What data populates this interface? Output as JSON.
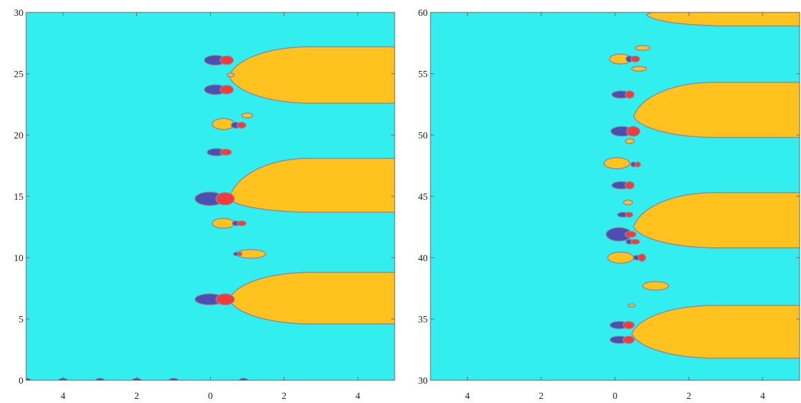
{
  "colors": {
    "background_region": "#33EEEE",
    "band_region": "#FFC21E",
    "boundary": "#8C8C9A",
    "blue_blob": "#4B4FAF",
    "red_blob": "#F03C3C",
    "frame": "#666666"
  },
  "chart_data": [
    {
      "type": "contour_region_plot",
      "title": "",
      "xlabel": "",
      "ylabel": "",
      "xlim": [
        -5,
        5
      ],
      "ylim": [
        0,
        30
      ],
      "x_ticks": [
        -4,
        -2,
        0,
        2,
        4
      ],
      "x_tick_labels": [
        "4",
        "2",
        "0",
        "2",
        "4"
      ],
      "y_ticks": [
        0,
        5,
        10,
        15,
        20,
        25,
        30
      ],
      "y_tick_labels": [
        "0",
        "5",
        "10",
        "15",
        "20",
        "25",
        "30"
      ],
      "grid": false,
      "legend": "none",
      "bands": [
        {
          "y_low_at_left": 4.6,
          "y_high_at_left": 8.8,
          "x_start": 0.5,
          "y_tip": 6.6
        },
        {
          "y_low_at_left": 13.7,
          "y_high_at_left": 18.1,
          "x_start": 0.5,
          "y_tip": 14.8
        },
        {
          "y_low_at_left": 22.6,
          "y_high_at_left": 27.2,
          "x_start": 0.5,
          "y_tip": 24.8
        }
      ],
      "yellow_islands": [
        {
          "x": 0.35,
          "y": 20.9,
          "rx": 0.3,
          "ry": 0.45
        },
        {
          "x": 0.35,
          "y": 12.8,
          "rx": 0.3,
          "ry": 0.4
        },
        {
          "x": 1.1,
          "y": 10.3,
          "rx": 0.4,
          "ry": 0.35
        },
        {
          "x": 1.0,
          "y": 21.6,
          "rx": 0.15,
          "ry": 0.2
        },
        {
          "x": 0.55,
          "y": 24.9,
          "rx": 0.1,
          "ry": 0.15
        }
      ],
      "pole_pairs": [
        {
          "x": 0.2,
          "y": 6.6,
          "blue_rx": 0.4,
          "blue_ry": 0.45,
          "red_rx": 0.25,
          "red_ry": 0.45
        },
        {
          "x": 0.2,
          "y": 14.8,
          "blue_rx": 0.4,
          "blue_ry": 0.55,
          "red_rx": 0.25,
          "red_ry": 0.5
        },
        {
          "x": 0.3,
          "y": 18.6,
          "blue_rx": 0.25,
          "blue_ry": 0.3,
          "red_rx": 0.15,
          "red_ry": 0.25
        },
        {
          "x": 0.3,
          "y": 23.7,
          "blue_rx": 0.3,
          "blue_ry": 0.4,
          "red_rx": 0.18,
          "red_ry": 0.35
        },
        {
          "x": 0.3,
          "y": 26.1,
          "blue_rx": 0.3,
          "blue_ry": 0.4,
          "red_rx": 0.18,
          "red_ry": 0.35
        },
        {
          "x": 0.75,
          "y": 20.8,
          "blue_rx": 0.12,
          "blue_ry": 0.25,
          "red_rx": 0.12,
          "red_ry": 0.25
        },
        {
          "x": 0.75,
          "y": 12.8,
          "blue_rx": 0.1,
          "blue_ry": 0.2,
          "red_rx": 0.12,
          "red_ry": 0.2
        },
        {
          "x": 0.75,
          "y": 10.3,
          "blue_rx": 0.08,
          "blue_ry": 0.15,
          "red_rx": 0.06,
          "red_ry": 0.15
        }
      ],
      "axis_dots": [
        -5,
        -4,
        -3,
        -2,
        -1,
        0.9
      ]
    },
    {
      "type": "contour_region_plot",
      "title": "",
      "xlabel": "",
      "ylabel": "",
      "xlim": [
        -5,
        5
      ],
      "ylim": [
        30,
        60
      ],
      "x_ticks": [
        -4,
        -2,
        0,
        2,
        4
      ],
      "x_tick_labels": [
        "4",
        "2",
        "0",
        "2",
        "4"
      ],
      "y_ticks": [
        30,
        35,
        40,
        45,
        50,
        55,
        60
      ],
      "y_tick_labels": [
        "30",
        "35",
        "40",
        "45",
        "50",
        "55",
        "60"
      ],
      "grid": false,
      "legend": "none",
      "bands": [
        {
          "y_low_at_left": 31.8,
          "y_high_at_left": 36.1,
          "x_start": 0.45,
          "y_tip": 33.8
        },
        {
          "y_low_at_left": 40.8,
          "y_high_at_left": 45.3,
          "x_start": 0.5,
          "y_tip": 42.5
        },
        {
          "y_low_at_left": 49.8,
          "y_high_at_left": 54.3,
          "x_start": 0.5,
          "y_tip": 51.5
        },
        {
          "y_low_at_left": 58.9,
          "y_high_at_left": 60.5,
          "x_start": 0.85,
          "y_tip": 59.8
        }
      ],
      "yellow_islands": [
        {
          "x": 0.15,
          "y": 40.0,
          "rx": 0.35,
          "ry": 0.45
        },
        {
          "x": 0.05,
          "y": 47.7,
          "rx": 0.35,
          "ry": 0.45
        },
        {
          "x": 1.1,
          "y": 37.7,
          "rx": 0.35,
          "ry": 0.35
        },
        {
          "x": 0.35,
          "y": 44.5,
          "rx": 0.12,
          "ry": 0.2
        },
        {
          "x": 0.15,
          "y": 56.2,
          "rx": 0.3,
          "ry": 0.4
        },
        {
          "x": 0.75,
          "y": 57.1,
          "rx": 0.2,
          "ry": 0.2
        },
        {
          "x": 0.65,
          "y": 55.4,
          "rx": 0.2,
          "ry": 0.2
        },
        {
          "x": 0.4,
          "y": 49.5,
          "rx": 0.12,
          "ry": 0.2
        },
        {
          "x": 0.45,
          "y": 36.1,
          "rx": 0.1,
          "ry": 0.12
        }
      ],
      "pole_pairs": [
        {
          "x": 0.25,
          "y": 33.3,
          "blue_rx": 0.25,
          "blue_ry": 0.3,
          "red_rx": 0.15,
          "red_ry": 0.3
        },
        {
          "x": 0.25,
          "y": 34.5,
          "blue_rx": 0.25,
          "blue_ry": 0.3,
          "red_rx": 0.15,
          "red_ry": 0.3
        },
        {
          "x": 0.3,
          "y": 41.9,
          "blue_rx": 0.35,
          "blue_ry": 0.55,
          "red_rx": 0.15,
          "red_ry": 0.25
        },
        {
          "x": 0.45,
          "y": 41.3,
          "blue_rx": 0.1,
          "blue_ry": 0.2,
          "red_rx": 0.12,
          "red_ry": 0.2
        },
        {
          "x": 0.3,
          "y": 43.5,
          "blue_rx": 0.15,
          "blue_ry": 0.2,
          "red_rx": 0.1,
          "red_ry": 0.2
        },
        {
          "x": 0.3,
          "y": 45.9,
          "blue_rx": 0.25,
          "blue_ry": 0.3,
          "red_rx": 0.12,
          "red_ry": 0.3
        },
        {
          "x": 0.35,
          "y": 50.3,
          "blue_rx": 0.3,
          "blue_ry": 0.4,
          "red_rx": 0.18,
          "red_ry": 0.4
        },
        {
          "x": 0.3,
          "y": 53.3,
          "blue_rx": 0.25,
          "blue_ry": 0.3,
          "red_rx": 0.12,
          "red_ry": 0.3
        },
        {
          "x": 0.45,
          "y": 56.2,
          "blue_rx": 0.1,
          "blue_ry": 0.25,
          "red_rx": 0.12,
          "red_ry": 0.25
        },
        {
          "x": 0.55,
          "y": 47.6,
          "blue_rx": 0.08,
          "blue_ry": 0.2,
          "red_rx": 0.08,
          "red_ry": 0.2
        },
        {
          "x": 0.65,
          "y": 40.0,
          "blue_rx": 0.1,
          "blue_ry": 0.2,
          "red_rx": 0.1,
          "red_ry": 0.3
        }
      ],
      "axis_dots": []
    }
  ]
}
